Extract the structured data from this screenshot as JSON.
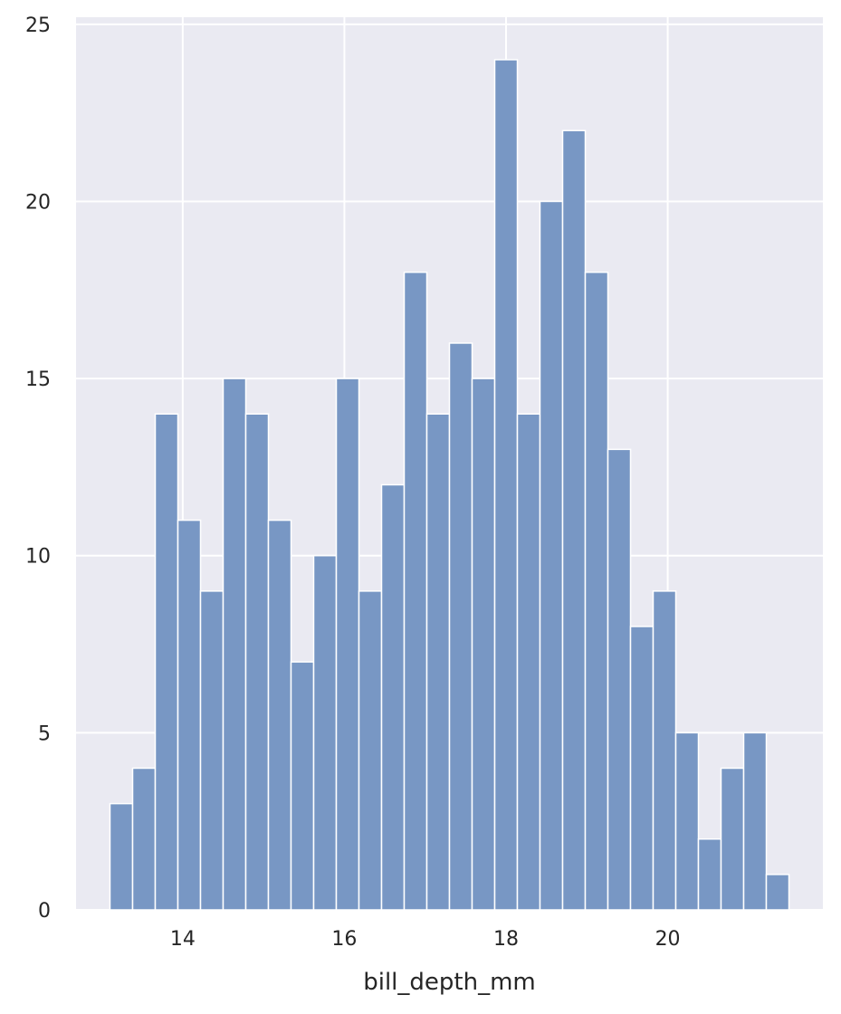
{
  "chart_data": {
    "type": "bar",
    "xlabel": "bill_depth_mm",
    "ylabel": "",
    "xlim": [
      12.68,
      21.92
    ],
    "ylim": [
      0,
      25.2
    ],
    "grid": true,
    "x_ticks": [
      14,
      16,
      18,
      20
    ],
    "y_ticks": [
      0,
      5,
      10,
      15,
      20,
      25
    ],
    "bin_start": 13.1,
    "bin_width": 0.28,
    "values": [
      3,
      4,
      14,
      11,
      9,
      15,
      14,
      11,
      7,
      10,
      15,
      9,
      12,
      18,
      14,
      16,
      15,
      24,
      14,
      20,
      22,
      18,
      13,
      8,
      9,
      5,
      2,
      4,
      5,
      1
    ],
    "colors": {
      "plot_background": "#eaeaf2",
      "grid": "#ffffff",
      "bar_fill": "#7897c4",
      "bar_edge": "#ffffff",
      "text": "#262626"
    }
  }
}
